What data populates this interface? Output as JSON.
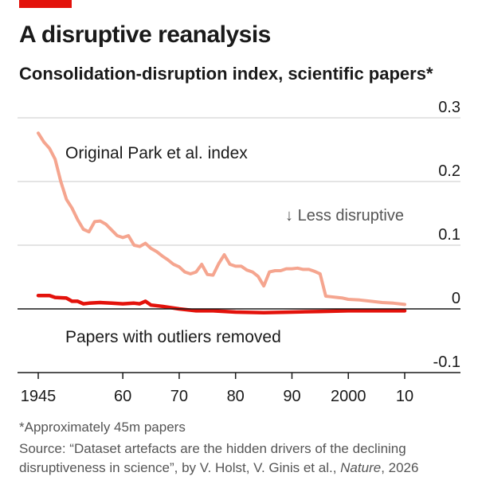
{
  "colors": {
    "accent": "#e3120b",
    "original_series": "#f5a58f",
    "outliers_series": "#e3120b",
    "grid": "#c8c8c8",
    "axis": "#1a1a1a",
    "text": "#1a1a1a",
    "muted_text": "#555555"
  },
  "header": {
    "title": "A disruptive reanalysis",
    "subtitle": "Consolidation-disruption index, scientific papers*"
  },
  "annotation": {
    "direction": "↓ Less disruptive"
  },
  "footer": {
    "footnote": "*Approximately 45m papers",
    "source_prefix": "Source: “Dataset artefacts are the hidden drivers of the declining disruptiveness in science”, by V. Holst, V. Ginis et al., ",
    "source_journal": "Nature",
    "source_suffix": ", 2026"
  },
  "chart_data": {
    "type": "line",
    "title": "A disruptive reanalysis",
    "subtitle": "Consolidation-disruption index, scientific papers*",
    "xlim": [
      1945,
      2010
    ],
    "ylim": [
      -0.1,
      0.3
    ],
    "x_ticks": [
      1945,
      1960,
      1970,
      1980,
      1990,
      2000,
      2010
    ],
    "x_tick_labels": [
      "1945",
      "60",
      "70",
      "80",
      "90",
      "2000",
      "10"
    ],
    "y_ticks": [
      0.3,
      0.2,
      0.1,
      0,
      -0.1
    ],
    "y_tick_labels": [
      "0.3",
      "0.2",
      "0.1",
      "0",
      "-0.1"
    ],
    "grid": true,
    "series": [
      {
        "name": "Original Park et al. index",
        "points": [
          [
            1945,
            0.276
          ],
          [
            1946,
            0.262
          ],
          [
            1947,
            0.252
          ],
          [
            1948,
            0.235
          ],
          [
            1949,
            0.2
          ],
          [
            1950,
            0.172
          ],
          [
            1951,
            0.158
          ],
          [
            1952,
            0.14
          ],
          [
            1953,
            0.125
          ],
          [
            1954,
            0.121
          ],
          [
            1955,
            0.137
          ],
          [
            1956,
            0.138
          ],
          [
            1957,
            0.133
          ],
          [
            1958,
            0.124
          ],
          [
            1959,
            0.115
          ],
          [
            1960,
            0.112
          ],
          [
            1961,
            0.115
          ],
          [
            1962,
            0.1
          ],
          [
            1963,
            0.098
          ],
          [
            1964,
            0.103
          ],
          [
            1965,
            0.095
          ],
          [
            1966,
            0.09
          ],
          [
            1967,
            0.083
          ],
          [
            1968,
            0.077
          ],
          [
            1969,
            0.07
          ],
          [
            1970,
            0.066
          ],
          [
            1971,
            0.058
          ],
          [
            1972,
            0.055
          ],
          [
            1973,
            0.058
          ],
          [
            1974,
            0.07
          ],
          [
            1975,
            0.054
          ],
          [
            1976,
            0.053
          ],
          [
            1977,
            0.071
          ],
          [
            1978,
            0.085
          ],
          [
            1979,
            0.07
          ],
          [
            1980,
            0.067
          ],
          [
            1981,
            0.067
          ],
          [
            1982,
            0.061
          ],
          [
            1983,
            0.058
          ],
          [
            1984,
            0.051
          ],
          [
            1985,
            0.036
          ],
          [
            1986,
            0.058
          ],
          [
            1987,
            0.06
          ],
          [
            1988,
            0.06
          ],
          [
            1989,
            0.063
          ],
          [
            1990,
            0.063
          ],
          [
            1991,
            0.064
          ],
          [
            1992,
            0.062
          ],
          [
            1993,
            0.062
          ],
          [
            1994,
            0.059
          ],
          [
            1995,
            0.055
          ],
          [
            1996,
            0.02
          ],
          [
            1997,
            0.019
          ],
          [
            1998,
            0.018
          ],
          [
            1999,
            0.017
          ],
          [
            2000,
            0.015
          ],
          [
            2002,
            0.014
          ],
          [
            2004,
            0.012
          ],
          [
            2006,
            0.01
          ],
          [
            2008,
            0.009
          ],
          [
            2010,
            0.007
          ]
        ]
      },
      {
        "name": "Papers with outliers removed",
        "points": [
          [
            1945,
            0.021
          ],
          [
            1947,
            0.021
          ],
          [
            1948,
            0.018
          ],
          [
            1950,
            0.017
          ],
          [
            1951,
            0.012
          ],
          [
            1952,
            0.012
          ],
          [
            1953,
            0.008
          ],
          [
            1954,
            0.009
          ],
          [
            1956,
            0.01
          ],
          [
            1958,
            0.009
          ],
          [
            1960,
            0.008
          ],
          [
            1962,
            0.009
          ],
          [
            1963,
            0.008
          ],
          [
            1964,
            0.012
          ],
          [
            1965,
            0.006
          ],
          [
            1967,
            0.004
          ],
          [
            1970,
            0.0
          ],
          [
            1973,
            -0.003
          ],
          [
            1976,
            -0.003
          ],
          [
            1980,
            -0.005
          ],
          [
            1985,
            -0.006
          ],
          [
            1990,
            -0.005
          ],
          [
            1995,
            -0.004
          ],
          [
            2000,
            -0.003
          ],
          [
            2005,
            -0.003
          ],
          [
            2010,
            -0.003
          ]
        ]
      }
    ]
  }
}
